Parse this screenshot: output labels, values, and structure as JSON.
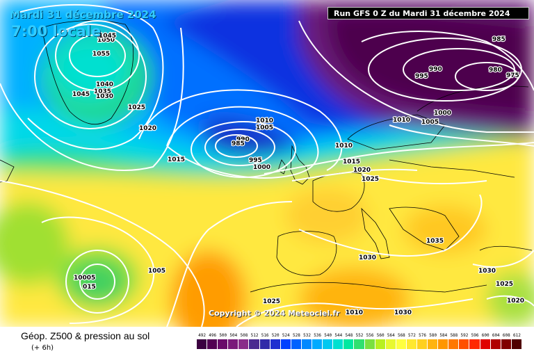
{
  "header": {
    "date": "Mardi 31 décembre 2024",
    "local_time": "7:00 locale",
    "run": "Run GFS 0 Z du Mardi 31 décembre 2024"
  },
  "copyright": "Copyright © 2024 Meteociel.fr",
  "footer": {
    "title": "Géop. Z500 & pression au sol",
    "subtitle": "(+ 6h)"
  },
  "legend": {
    "values": [
      "492",
      "496",
      "500",
      "504",
      "508",
      "512",
      "516",
      "520",
      "524",
      "528",
      "532",
      "536",
      "540",
      "544",
      "548",
      "552",
      "556",
      "560",
      "564",
      "568",
      "572",
      "576",
      "580",
      "584",
      "588",
      "592",
      "596",
      "600",
      "604",
      "608",
      "612"
    ],
    "colors": [
      "#3b0040",
      "#520052",
      "#6a0a6a",
      "#7a1a7a",
      "#8a2d8a",
      "#4b2b90",
      "#302aa8",
      "#1f2fd0",
      "#0040ff",
      "#0062ff",
      "#0088ff",
      "#00aaff",
      "#00c8f0",
      "#00e0d0",
      "#00e8a0",
      "#30e070",
      "#7ae040",
      "#b8f020",
      "#e8f830",
      "#ffff40",
      "#ffe830",
      "#ffd020",
      "#ffb410",
      "#ff9600",
      "#ff7800",
      "#ff5000",
      "#ff2800",
      "#e00000",
      "#b00000",
      "#800000",
      "#500000"
    ]
  },
  "pressure_labels": [
    "1050",
    "1045",
    "1055",
    "1040",
    "1035",
    "1030",
    "1045",
    "1025",
    "1020",
    "1015",
    "1010",
    "1005",
    "990",
    "985",
    "995",
    "1000",
    "1010",
    "1015",
    "1020",
    "1025",
    "985",
    "995",
    "990",
    "980",
    "975",
    "1010",
    "1005",
    "1000",
    "1035",
    "1030",
    "1030",
    "1025",
    "1020",
    "1030",
    "1025",
    "1010",
    "1005",
    "10005",
    "015"
  ]
}
